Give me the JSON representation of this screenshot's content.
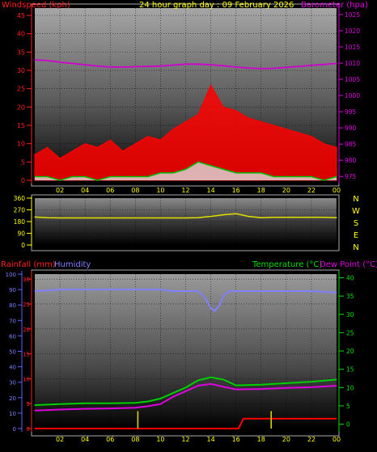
{
  "chart_data": [
    {
      "type": "line",
      "title": "24 hour graph day : 09 February 2026",
      "left_axis_title": "Windspeed (kph)",
      "right_axis_title": "Barometer (hpa)",
      "x_tick_labels": [
        "02",
        "04",
        "06",
        "08",
        "10",
        "12",
        "14",
        "16",
        "18",
        "20",
        "22",
        "00"
      ],
      "y_left_ticks": [
        "0",
        "5",
        "10",
        "15",
        "20",
        "25",
        "30",
        "35",
        "40",
        "45"
      ],
      "y_left_range": [
        0,
        47
      ],
      "y_right_ticks": [
        "975",
        "980",
        "985",
        "990",
        "995",
        "1000",
        "1005",
        "1010",
        "1015",
        "1020",
        "1025"
      ],
      "y_right_range": [
        973.8,
        1027
      ],
      "x_range_hours": [
        0,
        24
      ],
      "series": [
        {
          "name": "Barometer (hpa)",
          "axis": "right",
          "color": "#d000d0",
          "x": [
            0,
            1,
            2,
            3,
            4,
            5,
            6,
            7,
            8,
            9,
            10,
            11,
            12,
            13,
            14,
            15,
            16,
            17,
            18,
            19,
            20,
            21,
            22,
            23,
            24
          ],
          "y": [
            1011,
            1010.8,
            1010.3,
            1009.9,
            1009.5,
            1009.1,
            1008.8,
            1008.8,
            1008.9,
            1009.0,
            1009.1,
            1009.4,
            1009.7,
            1009.7,
            1009.5,
            1009.2,
            1008.8,
            1008.5,
            1008.3,
            1008.4,
            1008.7,
            1009.0,
            1009.3,
            1009.6,
            1009.9
          ]
        },
        {
          "name": "Wind gust",
          "axis": "left",
          "color": "#ff0000",
          "x": [
            0,
            1,
            2,
            3,
            4,
            5,
            6,
            7,
            8,
            9,
            10,
            11,
            12,
            13,
            14,
            15,
            16,
            17,
            18,
            19,
            20,
            21,
            22,
            23,
            24
          ],
          "y": [
            7,
            9,
            6,
            8,
            10,
            9,
            11,
            8,
            10,
            12,
            11,
            14,
            16,
            18,
            26,
            20,
            19,
            17,
            16,
            15,
            14,
            13,
            12,
            10,
            9
          ]
        },
        {
          "name": "Wind average",
          "axis": "left",
          "color": "#00c000",
          "x": [
            0,
            1,
            2,
            3,
            4,
            5,
            6,
            7,
            8,
            9,
            10,
            11,
            12,
            13,
            14,
            15,
            16,
            17,
            18,
            19,
            20,
            21,
            22,
            23,
            24
          ],
          "y": [
            1,
            1,
            0,
            1,
            1,
            0,
            1,
            1,
            1,
            1,
            2,
            2,
            3,
            5,
            4,
            3,
            2,
            2,
            2,
            1,
            1,
            1,
            1,
            0,
            1
          ]
        }
      ]
    },
    {
      "type": "line",
      "right_labels": [
        "N",
        "W",
        "S",
        "E",
        "N"
      ],
      "y_ticks": [
        "0",
        "90",
        "180",
        "270",
        "360"
      ],
      "y_range": [
        0,
        360
      ],
      "x_range_hours": [
        0,
        24
      ],
      "series": [
        {
          "name": "Wind direction",
          "color": "#e0e000",
          "x": [
            0,
            1,
            2,
            3,
            4,
            5,
            6,
            7,
            8,
            9,
            10,
            11,
            12,
            13,
            14,
            15,
            16,
            17,
            18,
            19,
            20,
            21,
            22,
            23,
            24
          ],
          "y": [
            215,
            210,
            208,
            208,
            208,
            208,
            208,
            208,
            208,
            208,
            208,
            208,
            208,
            210,
            220,
            232,
            240,
            220,
            210,
            212,
            213,
            213,
            212,
            212,
            210
          ]
        }
      ]
    },
    {
      "type": "line",
      "left_axis_title_1": "Rainfall (mm)",
      "left_axis_title_2": "Humidity",
      "right_axis_title_1": "Temperature (°C)",
      "right_axis_title_2": "Dew Point (°C)",
      "x_tick_labels": [
        "02",
        "04",
        "06",
        "08",
        "10",
        "12",
        "14",
        "16",
        "18",
        "20",
        "22",
        "00"
      ],
      "y_rain_ticks": [
        "0",
        "5",
        "10",
        "15",
        "20",
        "25",
        "30"
      ],
      "y_rain_range": [
        0,
        31
      ],
      "y_hum_ticks": [
        "0",
        "10",
        "20",
        "30",
        "40",
        "50",
        "60",
        "70",
        "80",
        "90",
        "100"
      ],
      "y_hum_range": [
        0,
        100
      ],
      "y_temp_ticks": [
        "0",
        "5",
        "10",
        "15",
        "20",
        "25",
        "30",
        "35",
        "40"
      ],
      "y_temp_range": [
        -1.2,
        41
      ],
      "x_range_hours": [
        0,
        24
      ],
      "series": [
        {
          "name": "Humidity",
          "axis": "humidity",
          "color": "#8080ff",
          "x": [
            0,
            2,
            4,
            6,
            8,
            9,
            10,
            11,
            12,
            13,
            13.5,
            14,
            14.3,
            14.7,
            15,
            15.5,
            16,
            18,
            20,
            22,
            24
          ],
          "y": [
            89,
            90,
            90,
            90,
            90,
            90,
            90,
            89,
            89,
            89,
            85,
            78,
            76,
            80,
            86,
            89,
            89,
            89,
            89,
            89,
            88
          ]
        },
        {
          "name": "Temperature (°C)",
          "axis": "temp",
          "color": "#00d000",
          "x": [
            0,
            2,
            4,
            6,
            8,
            9,
            10,
            11,
            12,
            13,
            14,
            15,
            16,
            18,
            20,
            22,
            24
          ],
          "y": [
            5.2,
            5.5,
            5.7,
            5.7,
            5.8,
            6.2,
            7,
            8.5,
            10,
            12,
            12.8,
            12.2,
            10.6,
            10.8,
            11.2,
            11.6,
            12.2
          ]
        },
        {
          "name": "Dew Point (°C)",
          "axis": "temp",
          "color": "#e000e0",
          "x": [
            0,
            2,
            4,
            6,
            8,
            9,
            10,
            11,
            12,
            13,
            14,
            15,
            16,
            18,
            20,
            22,
            24
          ],
          "y": [
            3.7,
            4.0,
            4.2,
            4.3,
            4.5,
            4.9,
            5.5,
            7.5,
            9,
            10.5,
            11,
            10.2,
            9.5,
            9.6,
            9.9,
            10.1,
            10.5
          ]
        },
        {
          "name": "Rainfall (mm)",
          "axis": "rain",
          "color": "#ff0000",
          "x": [
            0,
            16.2,
            16.6,
            24
          ],
          "y": [
            0,
            0,
            2,
            2
          ]
        },
        {
          "name": "Rain rate",
          "axis": "rain",
          "color": "#e0e000",
          "type": "bar",
          "x": [
            8.2,
            18.8
          ],
          "y": [
            3.5,
            3.5
          ]
        }
      ]
    }
  ]
}
